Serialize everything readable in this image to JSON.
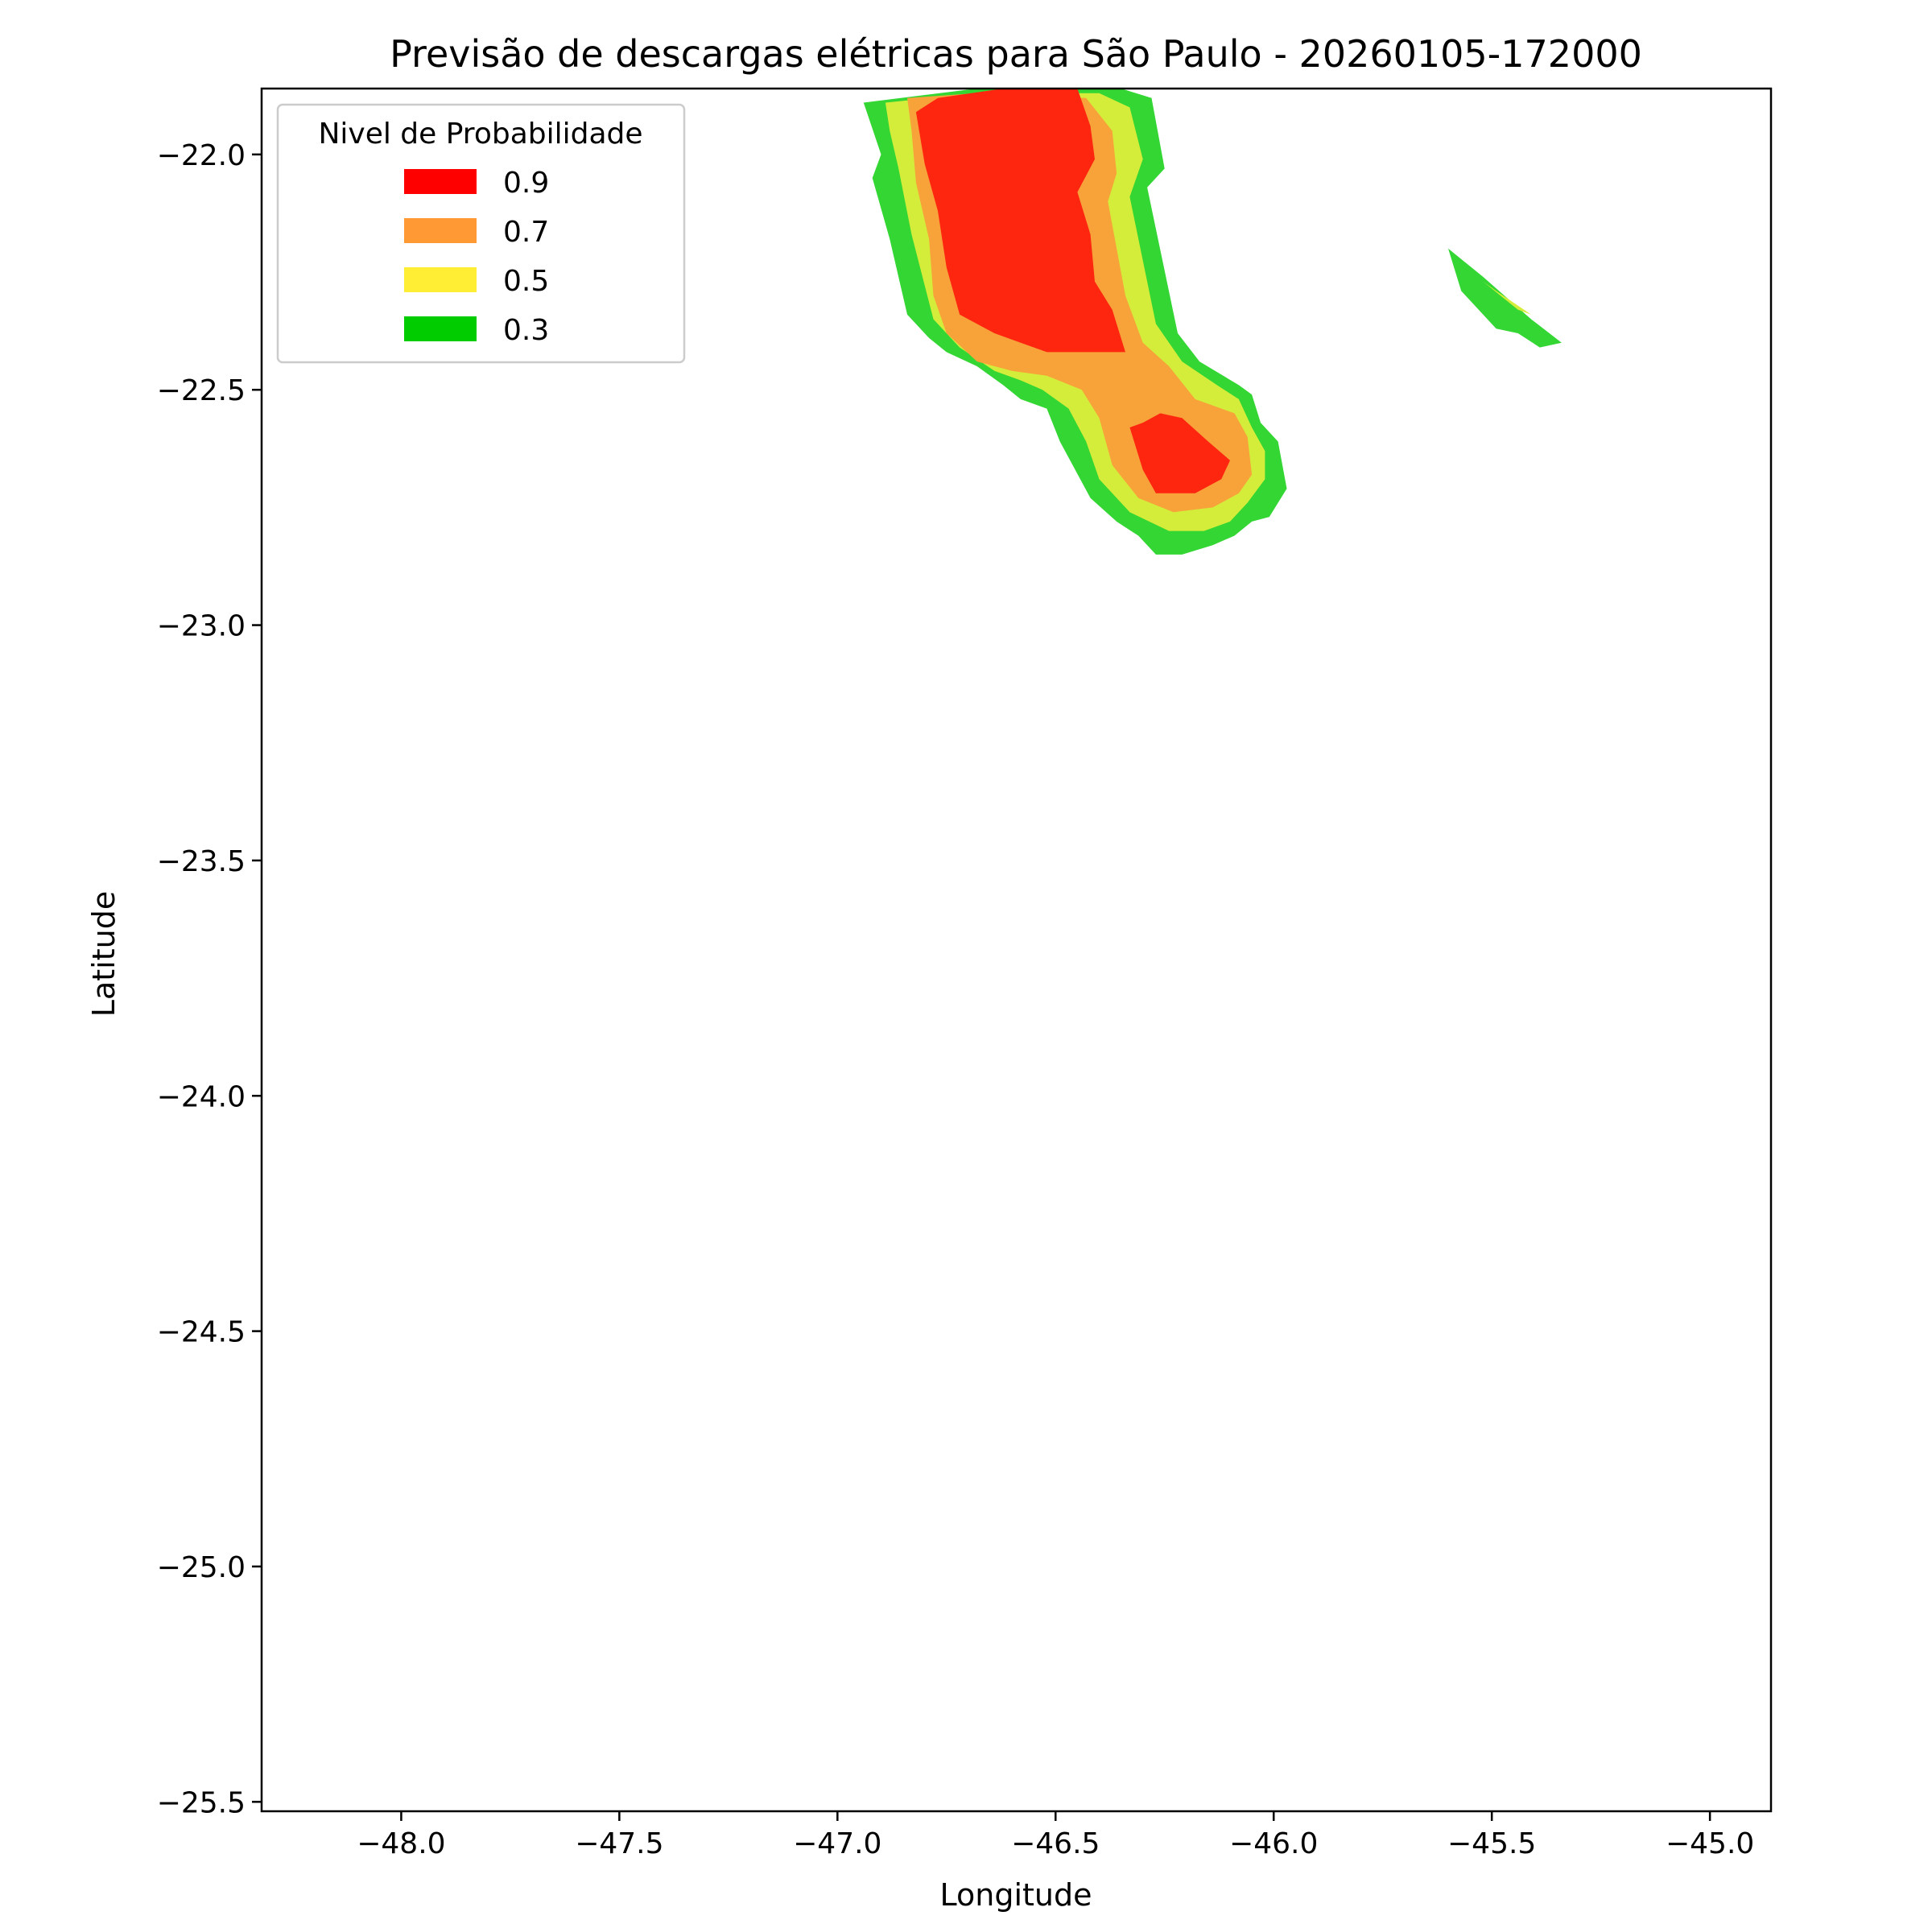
{
  "chart_data": {
    "type": "contourf",
    "title": "Previsão de descargas elétricas para São Paulo - 20260105-172000",
    "xlabel": "Longitude",
    "ylabel": "Latitude",
    "xlim": [
      -48.32,
      -44.86
    ],
    "ylim": [
      -25.52,
      -21.86
    ],
    "xticks": [
      -48.0,
      -47.5,
      -47.0,
      -46.5,
      -46.0,
      -45.5,
      -45.0
    ],
    "xtick_labels": [
      "−48.0",
      "−47.5",
      "−47.0",
      "−46.5",
      "−46.0",
      "−45.5",
      "−45.0"
    ],
    "yticks": [
      -22.0,
      -22.5,
      -23.0,
      -23.5,
      -24.0,
      -24.5,
      -25.0,
      -25.5
    ],
    "ytick_labels": [
      "−22.0",
      "−22.5",
      "−23.0",
      "−23.5",
      "−24.0",
      "−24.5",
      "−25.0",
      "−25.5"
    ],
    "grid": false,
    "legend": {
      "title": "Nivel de Probabilidade",
      "placement": "upper-left",
      "entries": [
        {
          "label": "0.9",
          "color": "#ff0000"
        },
        {
          "label": "0.7",
          "color": "#ff9933"
        },
        {
          "label": "0.5",
          "color": "#ffee33"
        },
        {
          "label": "0.3",
          "color": "#00cc00"
        }
      ]
    },
    "levels": [
      {
        "level": 0.3,
        "color": "#33d633",
        "regions": [
          [
            [
              -46.94,
              -21.89
            ],
            [
              -46.68,
              -21.86
            ],
            [
              -46.35,
              -21.86
            ],
            [
              -46.28,
              -21.88
            ],
            [
              -46.25,
              -22.03
            ],
            [
              -46.29,
              -22.07
            ],
            [
              -46.22,
              -22.38
            ],
            [
              -46.17,
              -22.44
            ],
            [
              -46.08,
              -22.49
            ],
            [
              -46.05,
              -22.51
            ],
            [
              -46.03,
              -22.57
            ],
            [
              -45.99,
              -22.61
            ],
            [
              -45.97,
              -22.71
            ],
            [
              -46.01,
              -22.77
            ],
            [
              -46.05,
              -22.78
            ],
            [
              -46.09,
              -22.81
            ],
            [
              -46.14,
              -22.83
            ],
            [
              -46.21,
              -22.85
            ],
            [
              -46.27,
              -22.85
            ],
            [
              -46.31,
              -22.81
            ],
            [
              -46.36,
              -22.78
            ],
            [
              -46.42,
              -22.73
            ],
            [
              -46.49,
              -22.61
            ],
            [
              -46.52,
              -22.54
            ],
            [
              -46.58,
              -22.52
            ],
            [
              -46.62,
              -22.49
            ],
            [
              -46.68,
              -22.45
            ],
            [
              -46.75,
              -22.42
            ],
            [
              -46.79,
              -22.39
            ],
            [
              -46.84,
              -22.34
            ],
            [
              -46.88,
              -22.18
            ],
            [
              -46.92,
              -22.05
            ],
            [
              -46.9,
              -22.0
            ]
          ],
          [
            [
              -45.6,
              -22.2
            ],
            [
              -45.52,
              -22.26
            ],
            [
              -45.41,
              -22.35
            ],
            [
              -45.34,
              -22.4
            ],
            [
              -45.39,
              -22.41
            ],
            [
              -45.44,
              -22.38
            ],
            [
              -45.49,
              -22.37
            ],
            [
              -45.57,
              -22.29
            ]
          ]
        ]
      },
      {
        "level": 0.5,
        "color": "#d4ed3a",
        "regions": [
          [
            [
              -46.89,
              -21.89
            ],
            [
              -46.68,
              -21.87
            ],
            [
              -46.4,
              -21.87
            ],
            [
              -46.33,
              -21.9
            ],
            [
              -46.3,
              -22.01
            ],
            [
              -46.33,
              -22.09
            ],
            [
              -46.27,
              -22.36
            ],
            [
              -46.21,
              -22.44
            ],
            [
              -46.13,
              -22.49
            ],
            [
              -46.08,
              -22.52
            ],
            [
              -46.05,
              -22.58
            ],
            [
              -46.02,
              -22.63
            ],
            [
              -46.02,
              -22.69
            ],
            [
              -46.06,
              -22.74
            ],
            [
              -46.1,
              -22.78
            ],
            [
              -46.16,
              -22.8
            ],
            [
              -46.24,
              -22.8
            ],
            [
              -46.33,
              -22.76
            ],
            [
              -46.4,
              -22.69
            ],
            [
              -46.43,
              -22.61
            ],
            [
              -46.47,
              -22.54
            ],
            [
              -46.53,
              -22.5
            ],
            [
              -46.58,
              -22.48
            ],
            [
              -46.64,
              -22.46
            ],
            [
              -46.72,
              -22.41
            ],
            [
              -46.78,
              -22.35
            ],
            [
              -46.83,
              -22.17
            ],
            [
              -46.86,
              -22.03
            ],
            [
              -46.88,
              -21.95
            ]
          ],
          [
            [
              -45.52,
              -22.27
            ],
            [
              -45.44,
              -22.33
            ],
            [
              -45.41,
              -22.34
            ],
            [
              -45.49,
              -22.29
            ]
          ]
        ]
      },
      {
        "level": 0.7,
        "color": "#f7a33a",
        "regions": [
          [
            [
              -46.84,
              -21.88
            ],
            [
              -46.68,
              -21.87
            ],
            [
              -46.43,
              -21.88
            ],
            [
              -46.37,
              -21.95
            ],
            [
              -46.36,
              -22.04
            ],
            [
              -46.38,
              -22.1
            ],
            [
              -46.34,
              -22.3
            ],
            [
              -46.3,
              -22.4
            ],
            [
              -46.24,
              -22.45
            ],
            [
              -46.18,
              -22.52
            ],
            [
              -46.09,
              -22.55
            ],
            [
              -46.06,
              -22.6
            ],
            [
              -46.05,
              -22.68
            ],
            [
              -46.08,
              -22.72
            ],
            [
              -46.14,
              -22.75
            ],
            [
              -46.23,
              -22.76
            ],
            [
              -46.31,
              -22.73
            ],
            [
              -46.37,
              -22.66
            ],
            [
              -46.4,
              -22.56
            ],
            [
              -46.44,
              -22.5
            ],
            [
              -46.52,
              -22.47
            ],
            [
              -46.6,
              -22.46
            ],
            [
              -46.68,
              -22.44
            ],
            [
              -46.75,
              -22.38
            ],
            [
              -46.78,
              -22.3
            ],
            [
              -46.79,
              -22.18
            ],
            [
              -46.82,
              -22.06
            ],
            [
              -46.83,
              -21.95
            ]
          ]
        ]
      },
      {
        "level": 0.9,
        "color": "#ff2610",
        "regions": [
          [
            [
              -46.82,
              -21.91
            ],
            [
              -46.77,
              -21.88
            ],
            [
              -46.62,
              -21.86
            ],
            [
              -46.45,
              -21.86
            ],
            [
              -46.42,
              -21.94
            ],
            [
              -46.41,
              -22.01
            ],
            [
              -46.45,
              -22.08
            ],
            [
              -46.42,
              -22.17
            ],
            [
              -46.41,
              -22.27
            ],
            [
              -46.37,
              -22.33
            ],
            [
              -46.34,
              -22.42
            ],
            [
              -46.52,
              -22.42
            ],
            [
              -46.64,
              -22.38
            ],
            [
              -46.72,
              -22.34
            ],
            [
              -46.75,
              -22.24
            ],
            [
              -46.77,
              -22.12
            ],
            [
              -46.8,
              -22.02
            ]
          ],
          [
            [
              -46.3,
              -22.57
            ],
            [
              -46.26,
              -22.55
            ],
            [
              -46.21,
              -22.56
            ],
            [
              -46.15,
              -22.61
            ],
            [
              -46.1,
              -22.65
            ],
            [
              -46.12,
              -22.69
            ],
            [
              -46.18,
              -22.72
            ],
            [
              -46.27,
              -22.72
            ],
            [
              -46.3,
              -22.67
            ],
            [
              -46.33,
              -22.58
            ]
          ]
        ]
      }
    ]
  }
}
